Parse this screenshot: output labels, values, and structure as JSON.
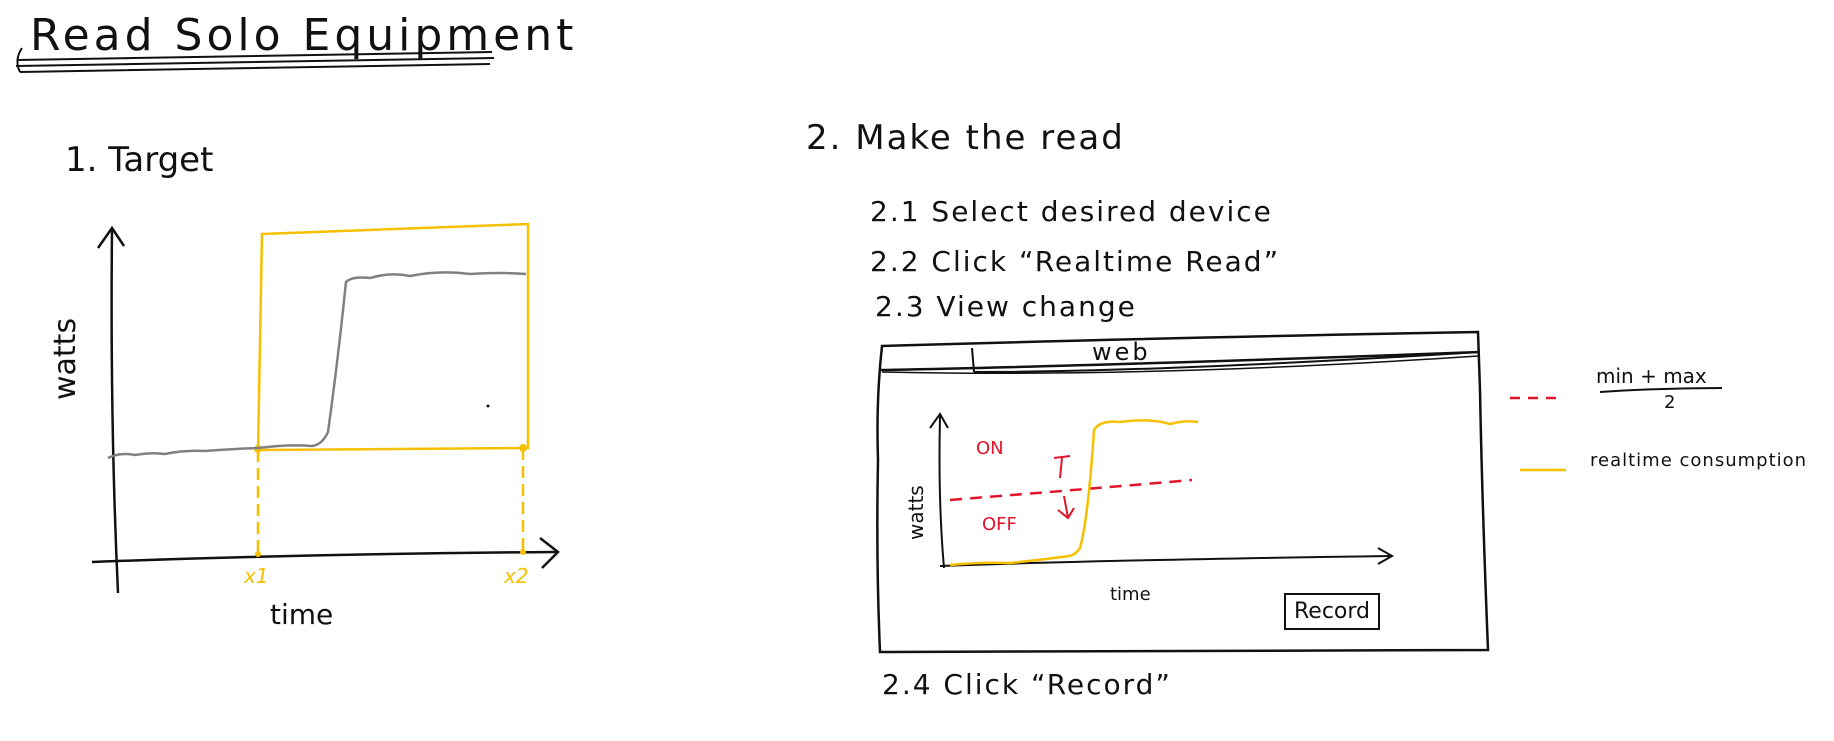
{
  "title": "Read Solo Equipment",
  "section1": {
    "heading": "1. Target",
    "ylabel": "watts",
    "xlabel": "time",
    "markers": [
      "x1",
      "x2"
    ]
  },
  "section2": {
    "heading": "2. Make the read",
    "steps": [
      "2.1  Select desired device",
      "2.2  Click “Realtime Read”",
      "2.3  View  change"
    ],
    "final_step": "2.4  Click “Record”",
    "browser": {
      "tab_label": "web",
      "ylabel": "watts",
      "xlabel": "time",
      "on_label": "ON",
      "off_label": "OFF",
      "record_button": "Record"
    }
  },
  "legend": {
    "threshold_label_top": "min + max",
    "threshold_label_bottom": "2",
    "realtime_label": "realtime consumption",
    "threshold_color": "#e0142a",
    "realtime_color": "#f5c000"
  },
  "colors": {
    "ink": "#111111",
    "highlight": "#f5c000",
    "trace": "#808080",
    "threshold": "#e0142a"
  }
}
